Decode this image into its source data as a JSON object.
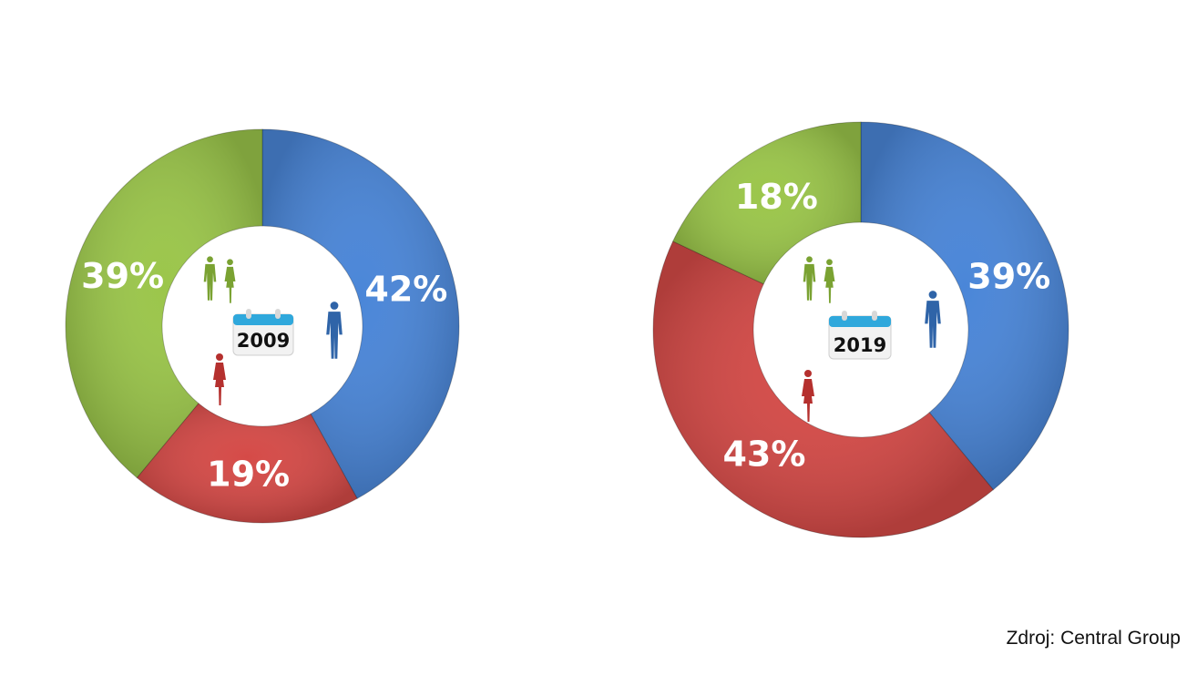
{
  "chart_data": [
    {
      "type": "pie",
      "donut": true,
      "center_label": "2009",
      "slices": [
        {
          "value": 42,
          "label": "42%",
          "color": "#4a86d8",
          "icon": "man-icon"
        },
        {
          "value": 19,
          "label": "19%",
          "color": "#d54a47",
          "icon": "woman-icon"
        },
        {
          "value": 39,
          "label": "39%",
          "color": "#9bc64a",
          "icon": "couple-icon"
        }
      ]
    },
    {
      "type": "pie",
      "donut": true,
      "center_label": "2019",
      "slices": [
        {
          "value": 39,
          "label": "39%",
          "color": "#4a86d8",
          "icon": "man-icon"
        },
        {
          "value": 43,
          "label": "43%",
          "color": "#d54a47",
          "icon": "woman-icon"
        },
        {
          "value": 18,
          "label": "18%",
          "color": "#9bc64a",
          "icon": "couple-icon"
        }
      ]
    }
  ],
  "source": "Zdroj: Central Group",
  "calendar_icon": "calendar-icon"
}
